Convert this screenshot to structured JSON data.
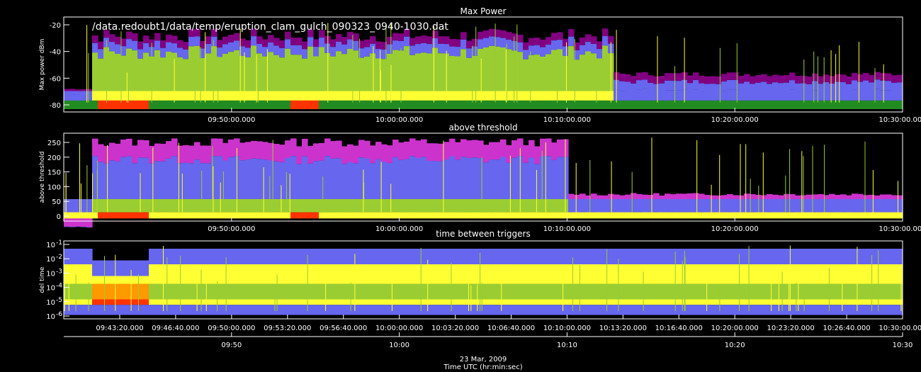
{
  "file_path": "/data.redoubt1/data/temp/eruption_clam_gulch_090323_0940-1030.dat",
  "colors": {
    "background": "#000000",
    "axes": "#ffffff",
    "palette": [
      "#800080",
      "#cc33cc",
      "#6666ee",
      "#228b22",
      "#9acd32",
      "#ffff33",
      "#ff9900",
      "#ff3300"
    ]
  },
  "chart_data": [
    {
      "type": "heatmap",
      "title": "Max Power",
      "ylabel": "Max power dBm",
      "ylim": [
        -85,
        -15
      ],
      "yticks": [
        "-20",
        "-40",
        "-60",
        "-80"
      ],
      "xticks": [
        "09:50:00.000",
        "10:00:00.000",
        "10:10:00.000",
        "10:20:00.000",
        "10:30:00.000"
      ]
    },
    {
      "type": "heatmap",
      "title": "above threshold",
      "ylabel": "above threshold",
      "ylim": [
        -10,
        270
      ],
      "yticks": [
        "0",
        "50",
        "100",
        "150",
        "200",
        "250"
      ],
      "xticks": [
        "09:50:00.000",
        "10:00:00.000",
        "10:10:00.000",
        "10:20:00.000",
        "10:30:00.000"
      ]
    },
    {
      "type": "heatmap",
      "title": "time between triggers",
      "ylabel": "del time",
      "yscale": "log",
      "yticks": [
        "10",
        "10",
        "10",
        "10",
        "10",
        "10"
      ],
      "yticks_exp": [
        "-1",
        "-2",
        "-3",
        "-4",
        "-5",
        "-6"
      ],
      "xticks": [
        "09:43:20.000",
        "09:46:40.000",
        "09:50:00.000",
        "09:53:20.000",
        "09:56:40.000",
        "10:00:00.000",
        "10:03:20.000",
        "10:06:40.000",
        "10:10:00.000",
        "10:13:20.000",
        "10:16:40.000",
        "10:20:00.000",
        "10:23:20.000",
        "10:26:40.000",
        "10:30:00.000"
      ]
    },
    {
      "type": "axis",
      "xticks": [
        "09:50",
        "10:00",
        "10:10",
        "10:20",
        "10:30"
      ],
      "date": "23 Mar, 2009",
      "xlabel": "Time UTC (hr:min:sec)"
    }
  ]
}
